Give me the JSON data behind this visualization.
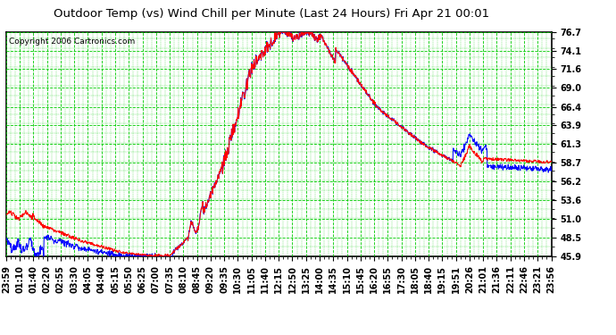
{
  "title": "Outdoor Temp (vs) Wind Chill per Minute (Last 24 Hours) Fri Apr 21 00:01",
  "copyright": "Copyright 2006 Cartronics.com",
  "yticks": [
    45.9,
    48.5,
    51.0,
    53.6,
    56.2,
    58.7,
    61.3,
    63.9,
    66.4,
    69.0,
    71.6,
    74.1,
    76.7
  ],
  "ylim": [
    45.9,
    76.7
  ],
  "xtick_labels": [
    "23:59",
    "01:10",
    "01:40",
    "02:20",
    "02:55",
    "03:30",
    "04:05",
    "04:40",
    "05:15",
    "05:50",
    "06:25",
    "07:00",
    "07:35",
    "08:10",
    "08:45",
    "09:20",
    "09:35",
    "10:30",
    "11:05",
    "11:40",
    "12:15",
    "12:50",
    "13:25",
    "14:00",
    "14:35",
    "15:10",
    "15:45",
    "16:20",
    "16:55",
    "17:30",
    "18:05",
    "18:40",
    "19:15",
    "19:51",
    "20:26",
    "21:01",
    "21:36",
    "22:11",
    "22:46",
    "23:21",
    "23:56"
  ],
  "bg_color": "#ffffff",
  "plot_bg_color": "#ffffff",
  "grid_color": "#00cc00",
  "line_color_temp": "#ff0000",
  "line_color_chill": "#0000ff",
  "title_fontsize": 11,
  "copyright_fontsize": 7,
  "tick_fontsize": 7,
  "n_points": 1440
}
